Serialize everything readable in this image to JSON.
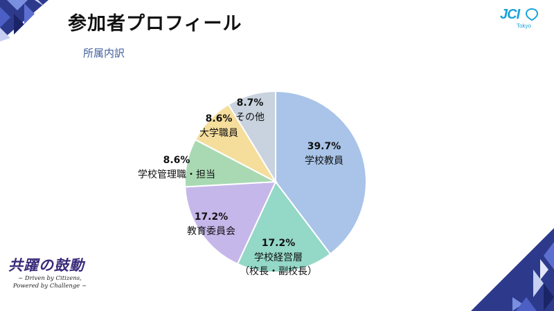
{
  "slide": {
    "title": "参加者プロフィール",
    "subtitle": "所属内訳"
  },
  "logo": {
    "text": "JCI",
    "sub": "Tokyo"
  },
  "slogan": {
    "main": "共躍の鼓動",
    "line1": "~ Driven by Citizens,",
    "line2": "Powered by Challenge ~"
  },
  "chart_data": {
    "type": "pie",
    "title": "",
    "slices": [
      {
        "label": "学校教員",
        "label_line2": "",
        "value": 39.7,
        "pct_text": "39.7%",
        "color": "#a9c4e8"
      },
      {
        "label": "学校経営層",
        "label_line2": "（校長・副校長）",
        "value": 17.2,
        "pct_text": "17.2%",
        "color": "#94d8c7"
      },
      {
        "label": "教育委員会",
        "label_line2": "",
        "value": 17.2,
        "pct_text": "17.2%",
        "color": "#c6b7ea"
      },
      {
        "label": "学校管理職・担当",
        "label_line2": "",
        "value": 8.6,
        "pct_text": "8.6%",
        "color": "#a8d9b3"
      },
      {
        "label": "大学職員",
        "label_line2": "",
        "value": 8.6,
        "pct_text": "8.6%",
        "color": "#f5dd9c"
      },
      {
        "label": "その他",
        "label_line2": "",
        "value": 8.7,
        "pct_text": "8.7%",
        "color": "#c9d3df"
      }
    ]
  }
}
